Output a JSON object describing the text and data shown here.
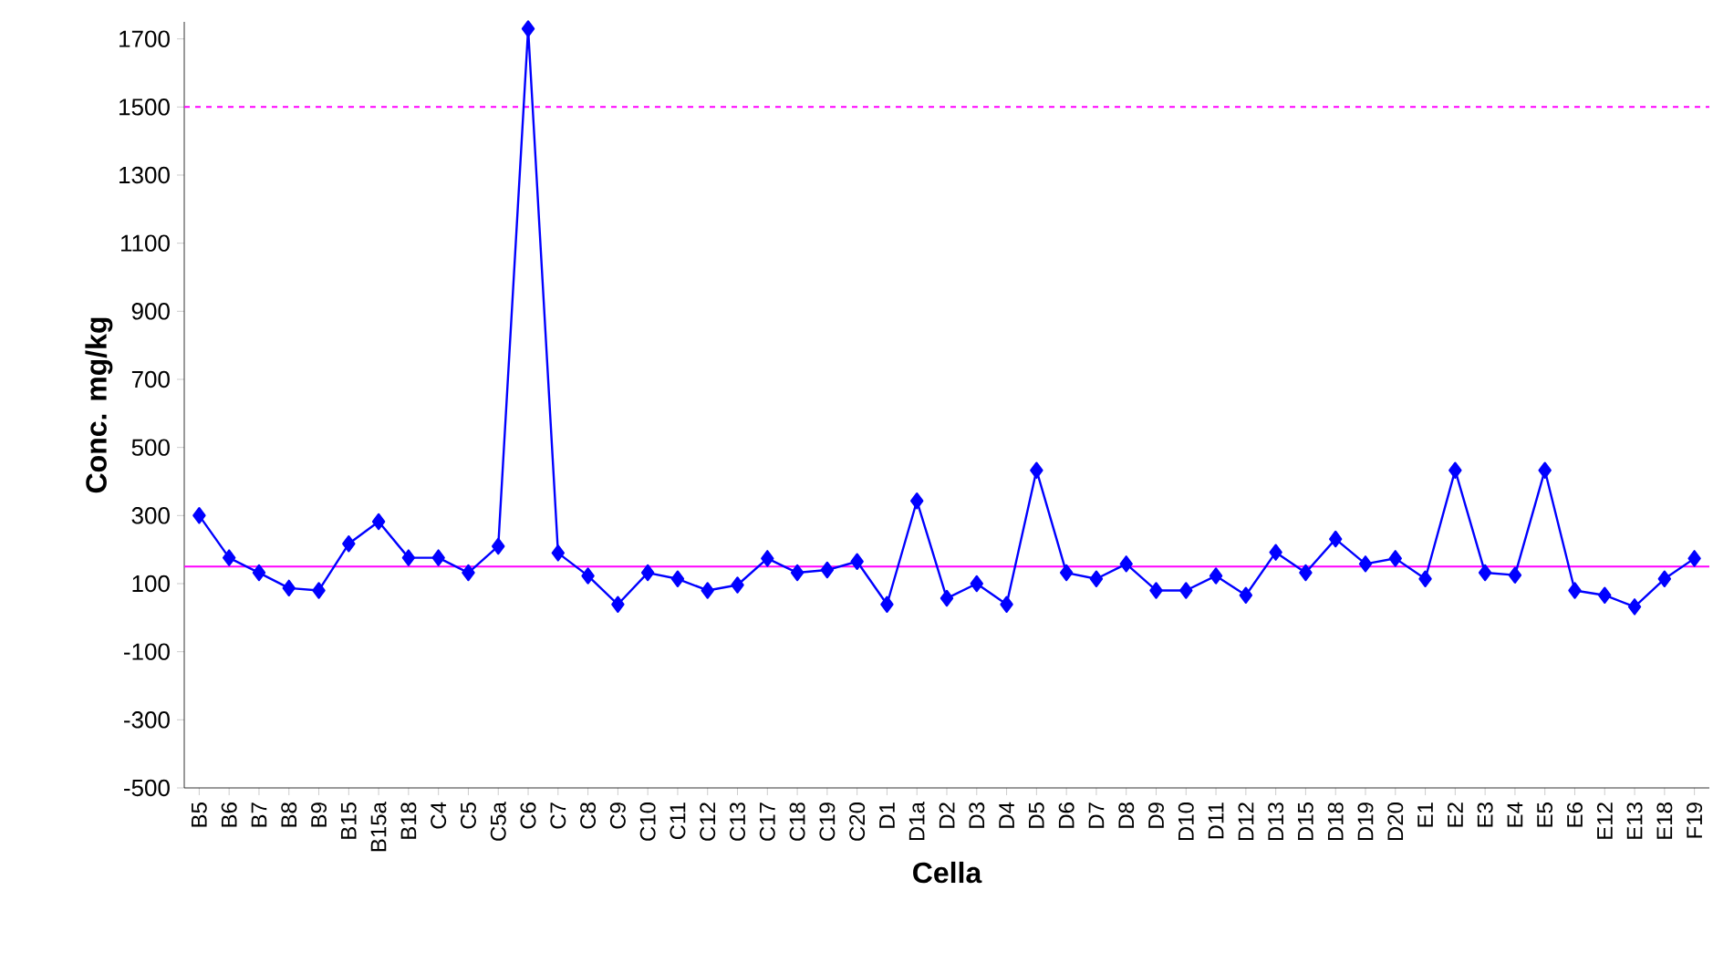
{
  "chart_data": {
    "type": "line",
    "xlabel": "Cella",
    "ylabel": "Conc. mg/kg",
    "categories": [
      "B5",
      "B6",
      "B7",
      "B8",
      "B9",
      "B15",
      "B15a",
      "B18",
      "C4",
      "C5",
      "C5a",
      "C6",
      "C7",
      "C8",
      "C9",
      "C10",
      "C11",
      "C12",
      "C13",
      "C17",
      "C18",
      "C19",
      "C20",
      "D1",
      "D1a",
      "D2",
      "D3",
      "D4",
      "D5",
      "D6",
      "D7",
      "D8",
      "D9",
      "D10",
      "D11",
      "D12",
      "D13",
      "D15",
      "D18",
      "D19",
      "D20",
      "E1",
      "E2",
      "E3",
      "E4",
      "E5",
      "E6",
      "E12",
      "E13",
      "E18",
      "F19"
    ],
    "series": [
      {
        "color": "#0000ff",
        "values": [
          300,
          176,
          132,
          87,
          80,
          217,
          282,
          176,
          176,
          132,
          210,
          1730,
          190,
          123,
          39,
          132,
          114,
          80,
          96,
          174,
          132,
          140,
          165,
          39,
          343,
          57,
          100,
          39,
          433,
          132,
          114,
          158,
          80,
          80,
          123,
          66,
          192,
          132,
          231,
          158,
          174,
          114,
          433,
          132,
          125,
          433,
          80,
          66,
          32,
          114,
          174
        ]
      }
    ],
    "ylim": [
      -500,
      1750
    ],
    "yticks": [
      -500,
      -300,
      -100,
      100,
      300,
      500,
      700,
      900,
      1100,
      1300,
      1500,
      1700
    ],
    "marker": "diamond",
    "line_style": "solid",
    "grid": false,
    "ref_lines": [
      {
        "axis": "y",
        "value": 150,
        "color": "#ff00ff",
        "line_style": "solid"
      },
      {
        "axis": "y",
        "value": 1500,
        "color": "#ff00ff",
        "line_style": "dashed"
      }
    ]
  }
}
